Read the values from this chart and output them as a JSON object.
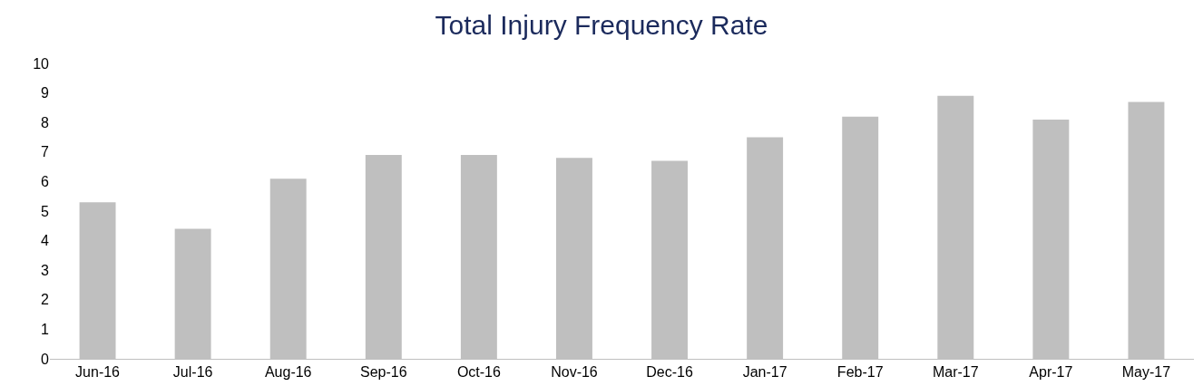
{
  "chart_data": {
    "type": "bar",
    "title": "Total Injury Frequency Rate",
    "categories": [
      "Jun-16",
      "Jul-16",
      "Aug-16",
      "Sep-16",
      "Oct-16",
      "Nov-16",
      "Dec-16",
      "Jan-17",
      "Feb-17",
      "Mar-17",
      "Apr-17",
      "May-17"
    ],
    "values": [
      5.3,
      4.4,
      6.1,
      6.9,
      6.9,
      6.8,
      6.7,
      7.5,
      8.2,
      8.9,
      8.1,
      8.7
    ],
    "color": "#bfbfbf",
    "ylim": [
      0,
      10
    ],
    "yticks": [
      0,
      1,
      2,
      3,
      4,
      5,
      6,
      7,
      8,
      9,
      10
    ],
    "grid": false
  }
}
